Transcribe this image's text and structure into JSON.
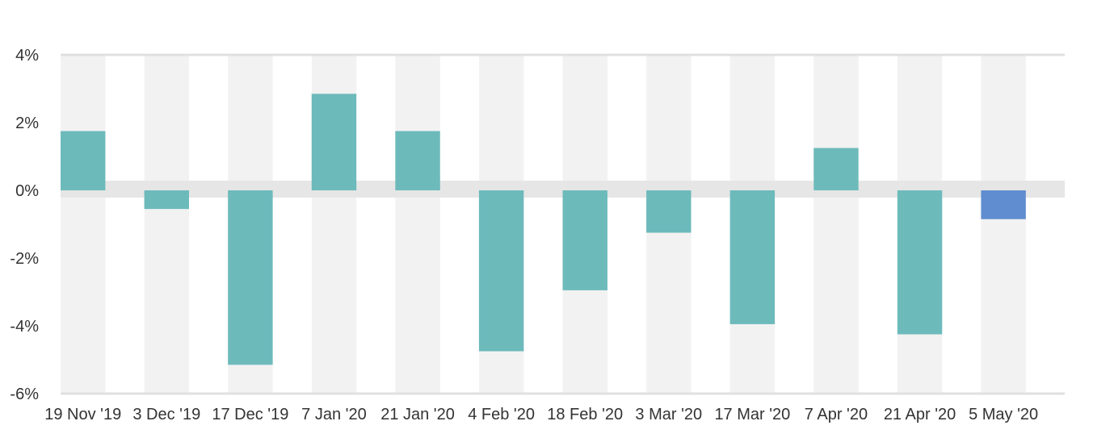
{
  "chart_data": {
    "type": "bar",
    "title": "",
    "xlabel": "",
    "ylabel": "",
    "categories": [
      "19 Nov '19",
      "3 Dec '19",
      "17 Dec '19",
      "7 Jan '20",
      "21 Jan '20",
      "4 Feb '20",
      "18 Feb '20",
      "3 Mar '20",
      "17 Mar '20",
      "7 Apr '20",
      "21 Apr '20",
      "5 May '20"
    ],
    "values": [
      1.75,
      -0.55,
      -5.15,
      2.85,
      1.75,
      -4.75,
      -2.95,
      -1.25,
      -3.95,
      1.25,
      -4.25,
      -0.85
    ],
    "ylim": [
      -6,
      4
    ],
    "yticks": [
      4,
      2,
      0,
      -2,
      -4,
      -6
    ],
    "ytick_labels": [
      "4%",
      "2%",
      "0%",
      "-2%",
      "-4%",
      "-6%"
    ],
    "grid": true,
    "colors": {
      "bar": "#6dbabb",
      "highlight": "#5f8dcf",
      "band": "#f2f2f2",
      "zero_band": "#e6e6e6"
    },
    "highlight_index": 11
  }
}
